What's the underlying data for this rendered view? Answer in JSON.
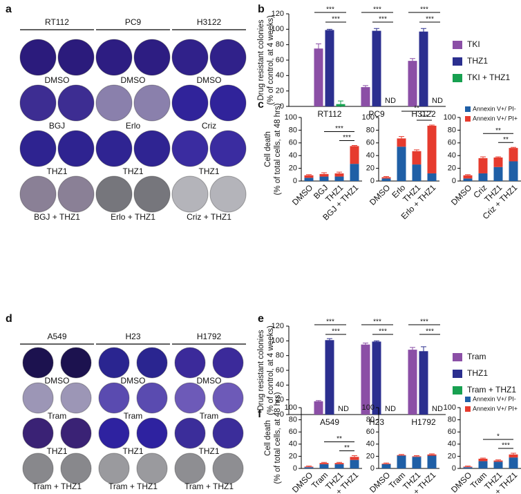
{
  "panel_labels": [
    "a",
    "b",
    "c",
    "d",
    "e",
    "f"
  ],
  "plates": [
    {
      "cell_lines": [
        "RT112",
        "PC9",
        "H3122"
      ],
      "treatments": [
        [
          "DMSO",
          "DMSO",
          "DMSO"
        ],
        [
          "BGJ",
          "Erlo",
          "Criz"
        ],
        [
          "THZ1",
          "THZ1",
          "THZ1"
        ],
        [
          "BGJ + THZ1",
          "Erlo + THZ1",
          "Criz + THZ1"
        ]
      ]
    },
    {
      "cell_lines": [
        "A549",
        "H23",
        "H1792"
      ],
      "treatments": [
        [
          "DMSO",
          "DMSO",
          "DMSO"
        ],
        [
          "Tram",
          "Tram",
          "Tram"
        ],
        [
          "THZ1",
          "THZ1",
          "THZ1"
        ],
        [
          "Tram + THZ1",
          "Tram + THZ1",
          "Tram + THZ1"
        ]
      ]
    }
  ],
  "chart_data": [
    {
      "type": "grouped_bar",
      "ylabel": [
        "Drug resistant colonies",
        "(% of control, at 4 weeks)"
      ],
      "categories": [
        "RT112",
        "PC9",
        "H3122"
      ],
      "series": [
        {
          "name": "TKI",
          "color": "#8b4fa6",
          "values": [
            75,
            25,
            59
          ],
          "errors": [
            6,
            2,
            3
          ]
        },
        {
          "name": "THZ1",
          "color": "#2b2f8f",
          "values": [
            99,
            98,
            97
          ],
          "errors": [
            1,
            3,
            4
          ]
        },
        {
          "name": "TKI + THZ1",
          "color": "#17a050",
          "values": [
            3,
            null,
            null
          ],
          "errors": [
            4,
            null,
            null
          ],
          "value_labels": [
            null,
            "ND",
            "ND"
          ]
        }
      ],
      "ylim": [
        0,
        120
      ],
      "yticks": [
        0,
        20,
        40,
        60,
        80,
        100,
        120
      ],
      "legend": "right",
      "significance": [
        {
          "category": 0,
          "between": [
            0,
            2
          ],
          "label": "***"
        },
        {
          "category": 0,
          "between": [
            1,
            2
          ],
          "label": "***"
        },
        {
          "category": 1,
          "between": [
            0,
            2
          ],
          "label": "***"
        },
        {
          "category": 1,
          "between": [
            1,
            2
          ],
          "label": "***"
        },
        {
          "category": 2,
          "between": [
            0,
            2
          ],
          "label": "***"
        },
        {
          "category": 2,
          "between": [
            1,
            2
          ],
          "label": "***"
        }
      ]
    },
    {
      "type": "stacked_bar",
      "ylabel": [
        "Cell death",
        "(% of total cells, at 48 hrs)"
      ],
      "categories": [
        [
          "DMSO",
          "BGJ",
          "THZ1",
          "BGJ + THZ1"
        ],
        [
          "DMSO",
          "Erlo",
          "THZ1",
          "Erlo + THZ1"
        ],
        [
          "DMSO",
          "Criz",
          "THZ1",
          "Criz + THZ1"
        ]
      ],
      "series": [
        {
          "name": "Annexin V+/ PI-",
          "color": "#1f5fa6",
          "values": [
            [
              5,
              7,
              7,
              27
            ],
            [
              4,
              54,
              26,
              12
            ],
            [
              4,
              12,
              22,
              31
            ]
          ]
        },
        {
          "name": "Annexin V+/ PI+",
          "color": "#e63b2e",
          "values": [
            [
              4,
              4,
              5,
              28
            ],
            [
              2,
              13,
              21,
              75
            ],
            [
              5,
              24,
              15,
              21
            ]
          ]
        }
      ],
      "errors": [
        [
          1,
          2,
          2,
          1
        ],
        [
          1,
          3,
          2,
          1
        ],
        [
          1,
          2,
          1,
          1
        ]
      ],
      "ylim": [
        0,
        100
      ],
      "yticks": [
        0,
        20,
        40,
        60,
        80,
        100
      ],
      "legend": "upper right",
      "significance": [
        [
          {
            "between": [
              1,
              3
            ],
            "label": "***"
          },
          {
            "between": [
              2,
              3
            ],
            "label": "***"
          }
        ],
        [
          {
            "between": [
              1,
              3
            ],
            "label": "**"
          },
          {
            "between": [
              2,
              3
            ],
            "label": "***"
          }
        ],
        [
          {
            "between": [
              1,
              3
            ],
            "label": "**"
          },
          {
            "between": [
              2,
              3
            ],
            "label": "**"
          }
        ]
      ]
    },
    {
      "type": "grouped_bar",
      "ylabel": [
        "Drug resistant colonies",
        "(% of control, at 4 weeks)"
      ],
      "categories": [
        "A549",
        "H23",
        "H1792"
      ],
      "series": [
        {
          "name": "Tram",
          "color": "#8b4fa6",
          "values": [
            18,
            95,
            88
          ],
          "errors": [
            1,
            2,
            3
          ]
        },
        {
          "name": "THZ1",
          "color": "#2b2f8f",
          "values": [
            101,
            99,
            86
          ],
          "errors": [
            2,
            1,
            6
          ]
        },
        {
          "name": "Tram + THZ1",
          "color": "#17a050",
          "values": [
            null,
            null,
            null
          ],
          "value_labels": [
            "ND",
            "ND",
            "ND"
          ]
        }
      ],
      "ylim": [
        0,
        120
      ],
      "yticks": [
        0,
        20,
        40,
        60,
        80,
        100,
        120
      ],
      "legend": "right",
      "significance": [
        {
          "category": 0,
          "between": [
            0,
            2
          ],
          "label": "***"
        },
        {
          "category": 0,
          "between": [
            1,
            2
          ],
          "label": "***"
        },
        {
          "category": 1,
          "between": [
            0,
            2
          ],
          "label": "***"
        },
        {
          "category": 1,
          "between": [
            1,
            2
          ],
          "label": "***"
        },
        {
          "category": 2,
          "between": [
            0,
            2
          ],
          "label": "***"
        },
        {
          "category": 2,
          "between": [
            1,
            2
          ],
          "label": "***"
        }
      ]
    },
    {
      "type": "stacked_bar",
      "ylabel": [
        "Cell death",
        "(% of total cells, at 48 hrs)"
      ],
      "categories": [
        [
          "DMSO",
          "Tram",
          "THZ1",
          "Tram + THZ1"
        ],
        [
          "DMSO",
          "Tram",
          "THZ1",
          "Tram + THZ1"
        ],
        [
          "DMSO",
          "Tram",
          "THZ1",
          "Tram + THZ1"
        ]
      ],
      "series": [
        {
          "name": "Annexin V+/ PI-",
          "color": "#1f5fa6",
          "values": [
            [
              2,
              7,
              7,
              14
            ],
            [
              7,
              21,
              19,
              21
            ],
            [
              2,
              12,
              11,
              18
            ]
          ]
        },
        {
          "name": "Annexin V+/ PI+",
          "color": "#e63b2e",
          "values": [
            [
              1,
              2,
              2,
              5
            ],
            [
              1,
              1,
              1,
              2
            ],
            [
              1,
              4,
              2,
              5
            ]
          ]
        }
      ],
      "errors": [
        [
          1,
          1,
          1,
          2
        ],
        [
          1,
          1,
          1,
          1
        ],
        [
          1,
          1,
          1,
          2
        ]
      ],
      "ylim": [
        0,
        100
      ],
      "yticks": [
        0,
        20,
        40,
        60,
        80,
        100
      ],
      "legend": "upper right",
      "significance": [
        [
          {
            "between": [
              1,
              3
            ],
            "label": "**"
          },
          {
            "between": [
              2,
              3
            ],
            "label": "**"
          }
        ],
        [],
        [
          {
            "between": [
              1,
              3
            ],
            "label": "*"
          },
          {
            "between": [
              2,
              3
            ],
            "label": "***"
          }
        ]
      ]
    }
  ]
}
